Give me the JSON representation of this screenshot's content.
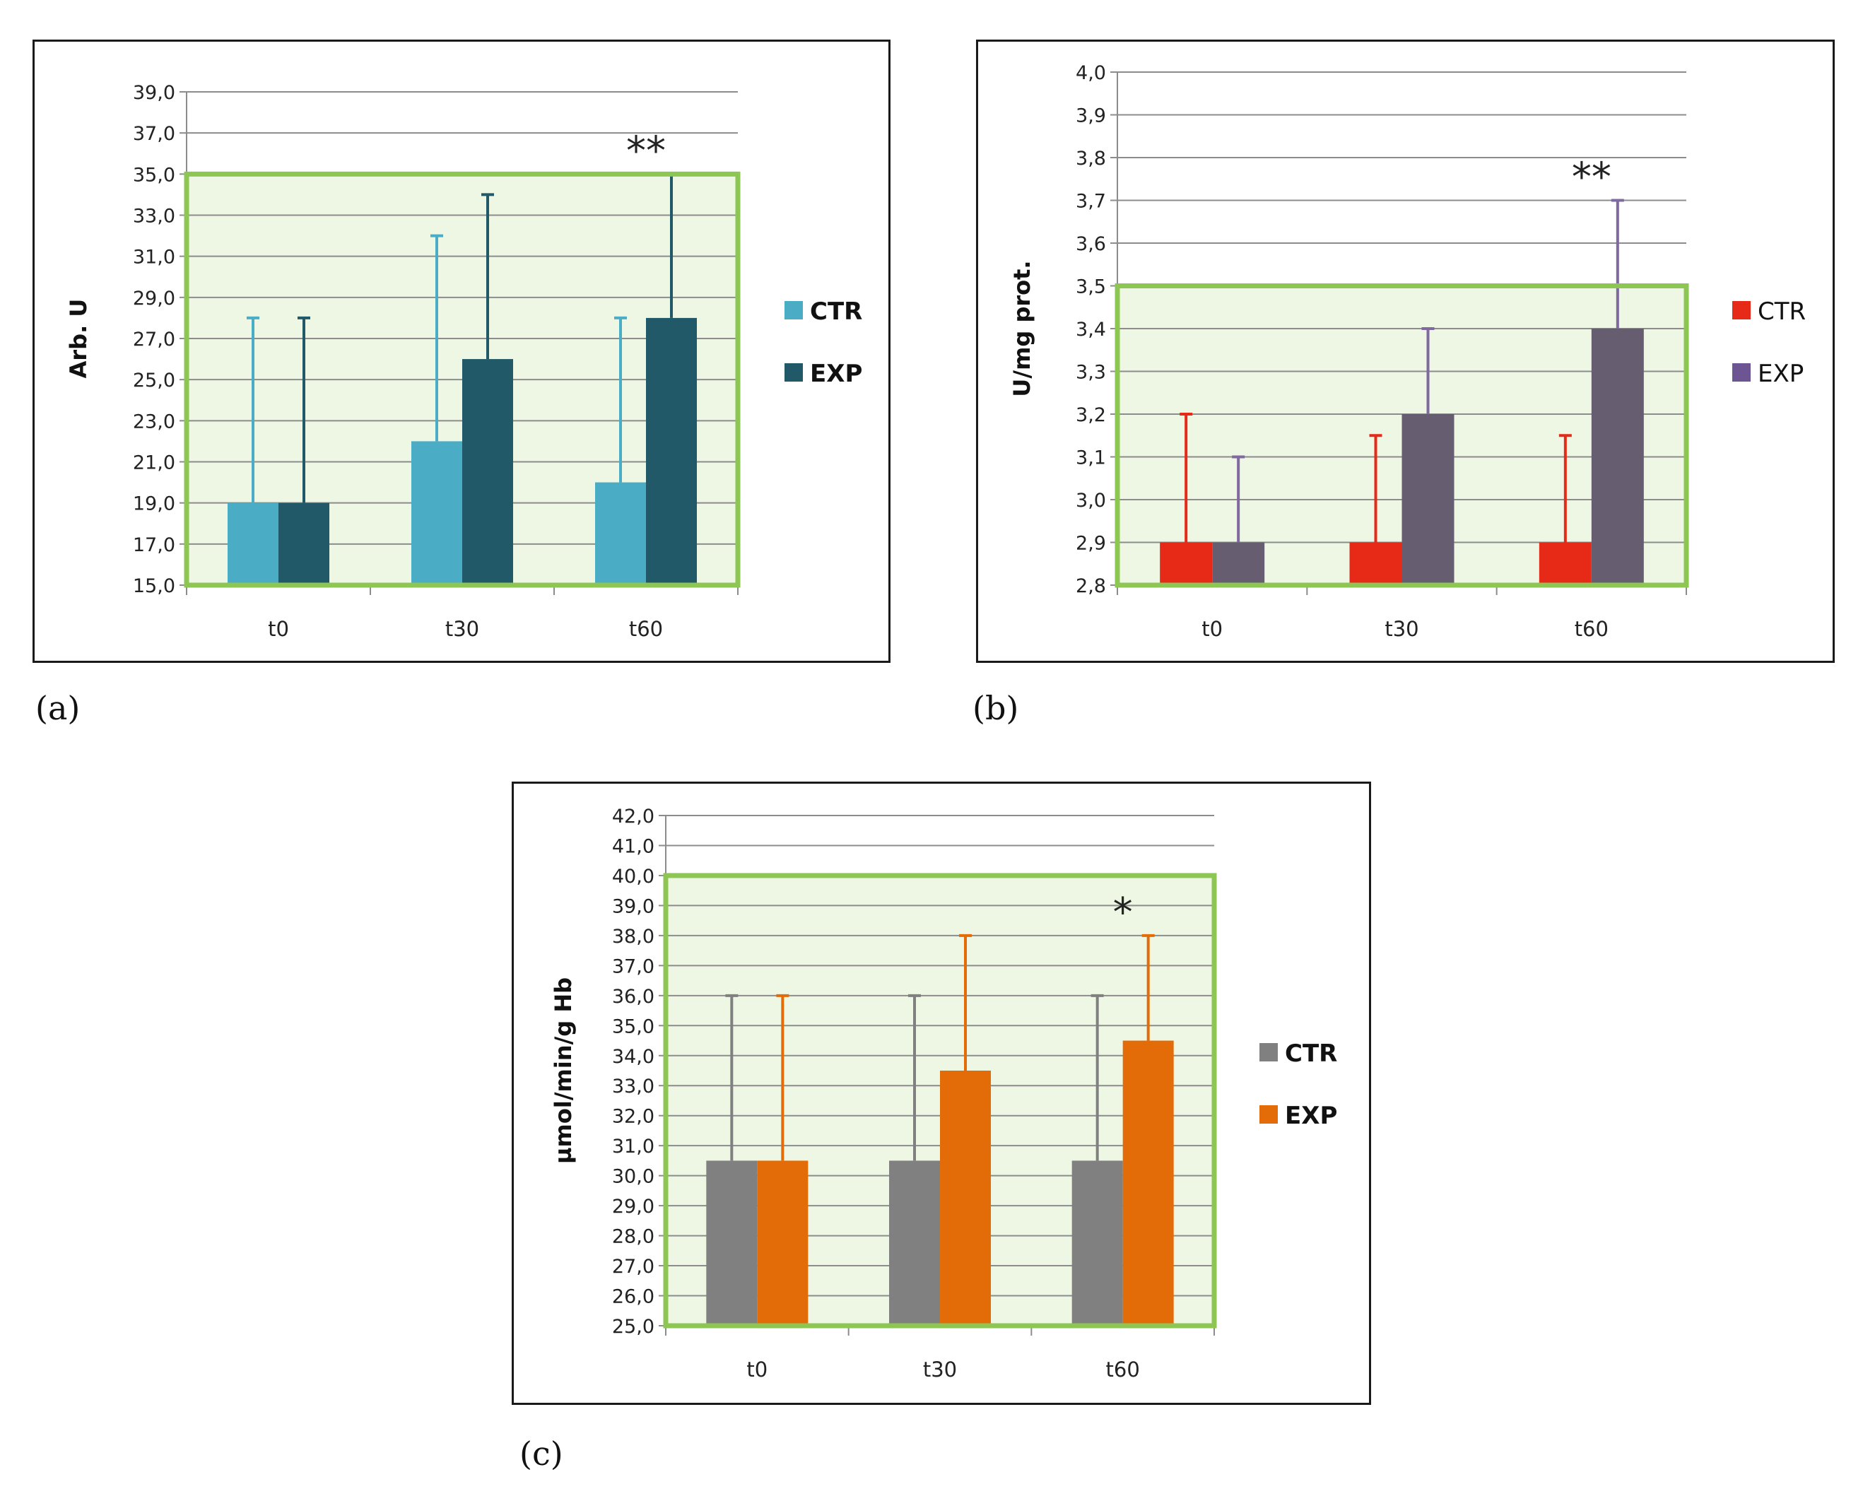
{
  "chart_data": [
    {
      "id": "a",
      "type": "bar",
      "panel_label": "(a)",
      "ylabel": "Arb. U",
      "ylim": [
        15,
        39
      ],
      "ytick_step": 2,
      "ytick_labels": [
        "15,0",
        "17,0",
        "19,0",
        "21,0",
        "23,0",
        "25,0",
        "27,0",
        "29,0",
        "31,0",
        "33,0",
        "35,0",
        "37,0",
        "39,0"
      ],
      "categories": [
        "t0",
        "t30",
        "t60"
      ],
      "series": [
        {
          "name": "CTR",
          "color": "#4bacc6",
          "values": [
            19,
            22,
            20
          ],
          "error_upper": [
            28,
            32,
            28
          ]
        },
        {
          "name": "EXP",
          "color": "#215968",
          "values": [
            19,
            26,
            28
          ],
          "error_upper": [
            28,
            34,
            35
          ]
        }
      ],
      "highlight_band": {
        "from": 15,
        "to": 35,
        "fill": "#eef7e4",
        "border": "#8dc653"
      },
      "annotations": [
        {
          "category": "t60",
          "text": "**"
        }
      ],
      "legend_position": "right",
      "legend_bold": true,
      "grid": true
    },
    {
      "id": "b",
      "type": "bar",
      "panel_label": "(b)",
      "ylabel": "U/mg prot.",
      "ylim": [
        2.8,
        4.0
      ],
      "ytick_step": 0.1,
      "ytick_labels": [
        "2,8",
        "2,9",
        "3,0",
        "3,1",
        "3,2",
        "3,3",
        "3,4",
        "3,5",
        "3,6",
        "3,7",
        "3,8",
        "3,9",
        "4,0"
      ],
      "categories": [
        "t0",
        "t30",
        "t60"
      ],
      "series": [
        {
          "name": "CTR",
          "color": "#e62a17",
          "values": [
            2.9,
            2.9,
            2.9
          ],
          "error_upper": [
            3.2,
            3.15,
            3.15
          ]
        },
        {
          "name": "EXP",
          "color": "#665e70",
          "values": [
            2.9,
            3.2,
            3.4
          ],
          "error_upper": [
            3.1,
            3.4,
            3.7
          ]
        }
      ],
      "error_colors": [
        "#e62a17",
        "#8068a0"
      ],
      "legend_colors": [
        "#e62a17",
        "#6d5594"
      ],
      "highlight_band": {
        "from": 2.8,
        "to": 3.5,
        "fill": "#eef7e4",
        "border": "#8dc653"
      },
      "annotations": [
        {
          "category": "t60",
          "text": "**"
        }
      ],
      "legend_position": "right",
      "legend_bold": false,
      "grid": true
    },
    {
      "id": "c",
      "type": "bar",
      "panel_label": "(c)",
      "ylabel": "µmol/min/g Hb",
      "ylim": [
        25,
        42
      ],
      "ytick_step": 1,
      "ytick_labels": [
        "25,0",
        "26,0",
        "27,0",
        "28,0",
        "29,0",
        "30,0",
        "31,0",
        "32,0",
        "33,0",
        "34,0",
        "35,0",
        "36,0",
        "37,0",
        "38,0",
        "39,0",
        "40,0",
        "41,0",
        "42,0"
      ],
      "categories": [
        "t0",
        "t30",
        "t60"
      ],
      "series": [
        {
          "name": "CTR",
          "color": "#808080",
          "values": [
            30.5,
            30.5,
            30.5
          ],
          "error_upper": [
            36,
            36,
            36
          ]
        },
        {
          "name": "EXP",
          "color": "#e36c09",
          "values": [
            30.5,
            33.5,
            34.5
          ],
          "error_upper": [
            36,
            38,
            38
          ]
        }
      ],
      "highlight_band": {
        "from": 25,
        "to": 40,
        "fill": "#eef7e4",
        "border": "#8dc653"
      },
      "annotations": [
        {
          "category": "t60",
          "text": "*"
        }
      ],
      "legend_position": "right",
      "legend_bold": true,
      "grid": true
    }
  ]
}
